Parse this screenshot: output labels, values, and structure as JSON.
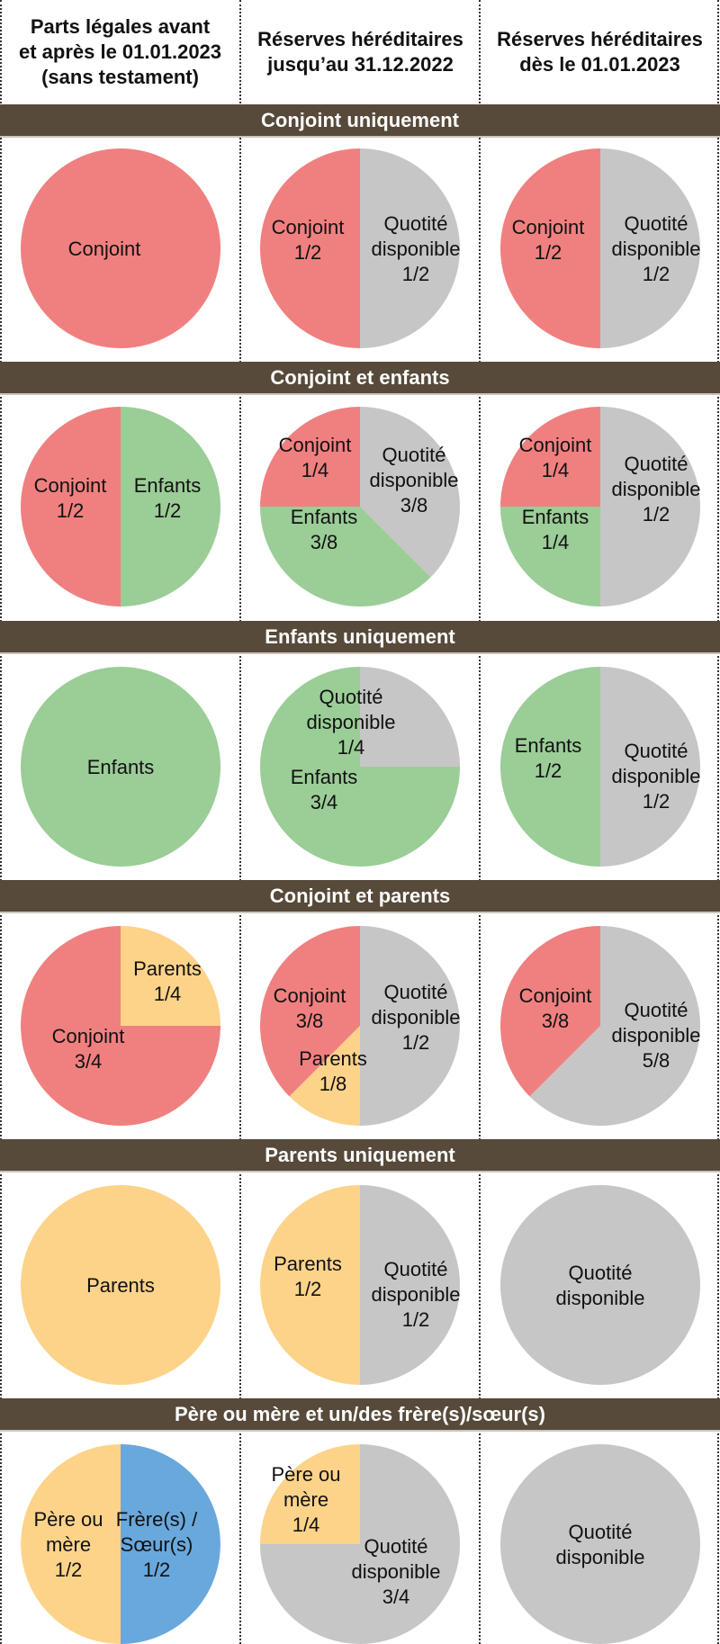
{
  "columns": [
    {
      "label": "Parts légales avant\net après le 01.01.2023\n(sans testament)"
    },
    {
      "label": "Réserves héréditaires\njusqu’au 31.12.2022"
    },
    {
      "label": "Réserves héréditaires\ndès le 01.01.2023"
    }
  ],
  "colors": {
    "conjoint": "#F08080",
    "enfants": "#9BCD97",
    "parents": "#FDD38A",
    "freres_soeurs": "#69A8DC",
    "quotite": "#C6C6C6",
    "band": "#574A3A"
  },
  "chart_data": {
    "type": "pie",
    "title": "",
    "sections": [
      {
        "title": "Conjoint uniquement",
        "pies": [
          {
            "slices": [
              {
                "name": "Conjoint",
                "value": 1,
                "color_key": "conjoint",
                "label": [
                  "Conjoint"
                ]
              }
            ]
          },
          {
            "slices": [
              {
                "name": "Quotité disponible",
                "value": 0.5,
                "color_key": "quotite",
                "label": [
                  "Quotité",
                  "disponible",
                  "1/2"
                ]
              },
              {
                "name": "Conjoint",
                "value": 0.5,
                "color_key": "conjoint",
                "label": [
                  "Conjoint",
                  "1/2"
                ]
              }
            ]
          },
          {
            "slices": [
              {
                "name": "Quotité disponible",
                "value": 0.5,
                "color_key": "quotite",
                "label": [
                  "Quotité",
                  "disponible",
                  "1/2"
                ]
              },
              {
                "name": "Conjoint",
                "value": 0.5,
                "color_key": "conjoint",
                "label": [
                  "Conjoint",
                  "1/2"
                ]
              }
            ]
          }
        ]
      },
      {
        "title": "Conjoint et enfants",
        "pies": [
          {
            "slices": [
              {
                "name": "Enfants",
                "value": 0.5,
                "color_key": "enfants",
                "label": [
                  "Enfants",
                  "1/2"
                ]
              },
              {
                "name": "Conjoint",
                "value": 0.5,
                "color_key": "conjoint",
                "label": [
                  "Conjoint",
                  "1/2"
                ]
              }
            ]
          },
          {
            "slices": [
              {
                "name": "Quotité disponible",
                "value": 0.375,
                "color_key": "quotite",
                "label": [
                  "Quotité",
                  "disponible",
                  "3/8"
                ]
              },
              {
                "name": "Enfants",
                "value": 0.375,
                "color_key": "enfants",
                "label": [
                  "Enfants",
                  "3/8"
                ]
              },
              {
                "name": "Conjoint",
                "value": 0.25,
                "color_key": "conjoint",
                "label": [
                  "Conjoint",
                  "1/4"
                ]
              }
            ]
          },
          {
            "slices": [
              {
                "name": "Quotité disponible",
                "value": 0.5,
                "color_key": "quotite",
                "label": [
                  "Quotité",
                  "disponible",
                  "1/2"
                ]
              },
              {
                "name": "Enfants",
                "value": 0.25,
                "color_key": "enfants",
                "label": [
                  "Enfants",
                  "1/4"
                ]
              },
              {
                "name": "Conjoint",
                "value": 0.25,
                "color_key": "conjoint",
                "label": [
                  "Conjoint",
                  "1/4"
                ]
              }
            ]
          }
        ]
      },
      {
        "title": "Enfants uniquement",
        "pies": [
          {
            "slices": [
              {
                "name": "Enfants",
                "value": 1,
                "color_key": "enfants",
                "label": [
                  "Enfants"
                ]
              }
            ]
          },
          {
            "slices": [
              {
                "name": "Quotité disponible",
                "value": 0.25,
                "color_key": "quotite",
                "label": [
                  "Quotité",
                  "disponible",
                  "1/4"
                ]
              },
              {
                "name": "Enfants",
                "value": 0.75,
                "color_key": "enfants",
                "label": [
                  "Enfants",
                  "3/4"
                ]
              }
            ]
          },
          {
            "slices": [
              {
                "name": "Quotité disponible",
                "value": 0.5,
                "color_key": "quotite",
                "label": [
                  "Quotité",
                  "disponible",
                  "1/2"
                ]
              },
              {
                "name": "Enfants",
                "value": 0.5,
                "color_key": "enfants",
                "label": [
                  "Enfants",
                  "1/2"
                ]
              }
            ]
          }
        ]
      },
      {
        "title": "Conjoint et parents",
        "pies": [
          {
            "slices": [
              {
                "name": "Parents",
                "value": 0.25,
                "color_key": "parents",
                "label": [
                  "Parents",
                  "1/4"
                ]
              },
              {
                "name": "Conjoint",
                "value": 0.75,
                "color_key": "conjoint",
                "label": [
                  "Conjoint",
                  "3/4"
                ]
              }
            ]
          },
          {
            "slices": [
              {
                "name": "Quotité disponible",
                "value": 0.5,
                "color_key": "quotite",
                "label": [
                  "Quotité",
                  "disponible",
                  "1/2"
                ]
              },
              {
                "name": "Parents",
                "value": 0.125,
                "color_key": "parents",
                "label": [
                  "Parents",
                  "1/8"
                ]
              },
              {
                "name": "Conjoint",
                "value": 0.375,
                "color_key": "conjoint",
                "label": [
                  "Conjoint",
                  "3/8"
                ]
              }
            ]
          },
          {
            "slices": [
              {
                "name": "Quotité disponible",
                "value": 0.625,
                "color_key": "quotite",
                "label": [
                  "Quotité",
                  "disponible",
                  "5/8"
                ]
              },
              {
                "name": "Conjoint",
                "value": 0.375,
                "color_key": "conjoint",
                "label": [
                  "Conjoint",
                  "3/8"
                ]
              }
            ]
          }
        ]
      },
      {
        "title": "Parents uniquement",
        "pies": [
          {
            "slices": [
              {
                "name": "Parents",
                "value": 1,
                "color_key": "parents",
                "label": [
                  "Parents"
                ]
              }
            ]
          },
          {
            "slices": [
              {
                "name": "Quotité disponible",
                "value": 0.5,
                "color_key": "quotite",
                "label": [
                  "Quotité",
                  "disponible",
                  "1/2"
                ]
              },
              {
                "name": "Parents",
                "value": 0.5,
                "color_key": "parents",
                "label": [
                  "Parents",
                  "1/2"
                ]
              }
            ]
          },
          {
            "slices": [
              {
                "name": "Quotité disponible",
                "value": 1,
                "color_key": "quotite",
                "label": [
                  "Quotité",
                  "disponible"
                ]
              }
            ]
          }
        ]
      },
      {
        "title": "Père ou mère et un/des frère(s)/sœur(s)",
        "pies": [
          {
            "slices": [
              {
                "name": "Frère(s) / Sœur(s)",
                "value": 0.5,
                "color_key": "freres_soeurs",
                "label": [
                  "Frère(s) /",
                  "Sœur(s)",
                  "1/2"
                ]
              },
              {
                "name": "Père ou mère",
                "value": 0.5,
                "color_key": "parents",
                "label": [
                  "Père ou",
                  "mère",
                  "1/2"
                ]
              }
            ]
          },
          {
            "slices": [
              {
                "name": "Quotité disponible",
                "value": 0.75,
                "color_key": "quotite",
                "label": [
                  "Quotité",
                  "disponible",
                  "3/4"
                ]
              },
              {
                "name": "Père ou mère",
                "value": 0.25,
                "color_key": "parents",
                "label": [
                  "Père ou",
                  "mère",
                  "1/4"
                ]
              }
            ]
          },
          {
            "slices": [
              {
                "name": "Quotité disponible",
                "value": 1,
                "color_key": "quotite",
                "label": [
                  "Quotité",
                  "disponible"
                ]
              }
            ]
          }
        ]
      }
    ]
  }
}
